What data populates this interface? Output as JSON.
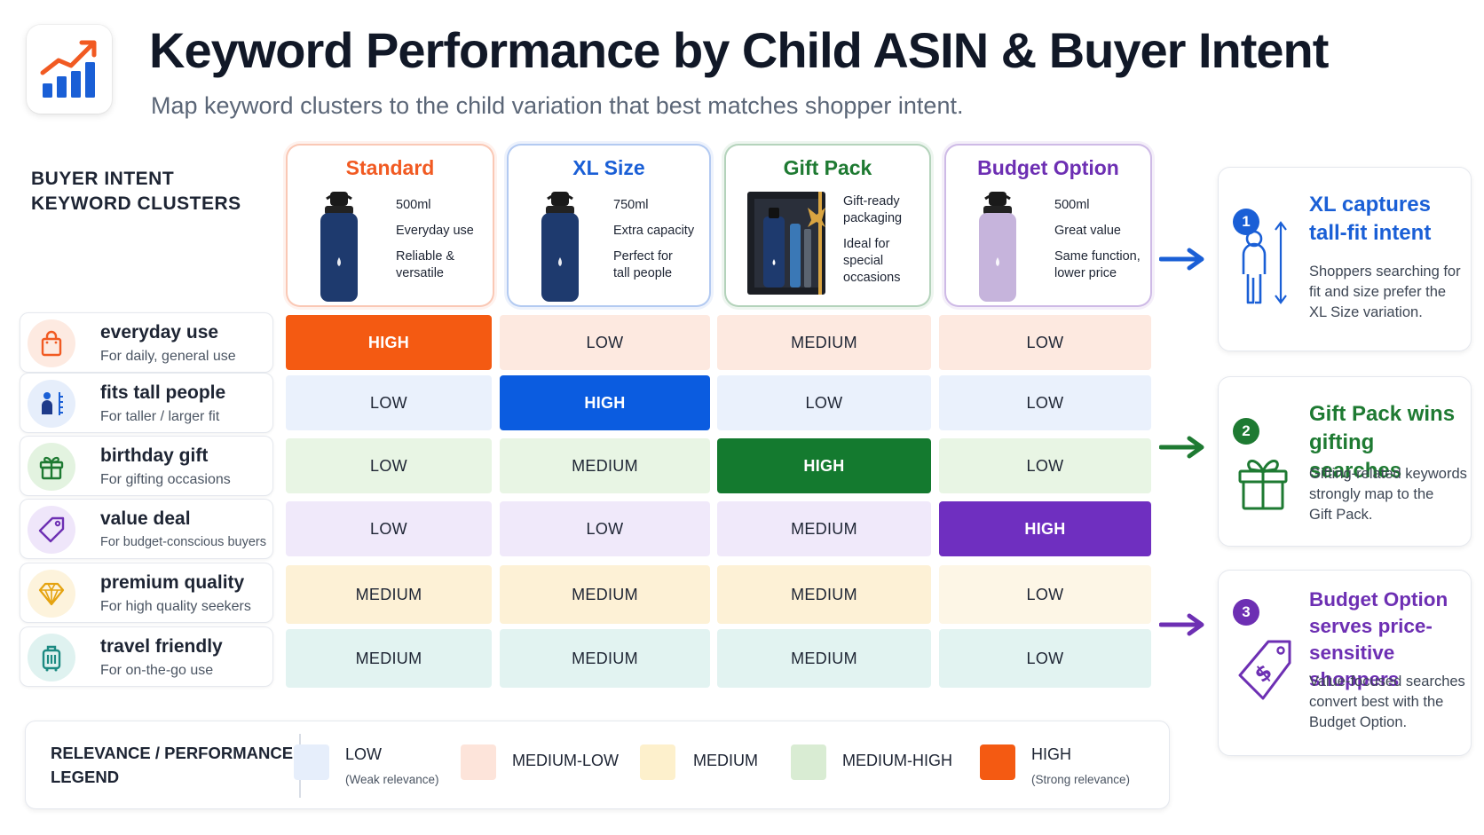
{
  "header": {
    "logo_icon": "trending-bar-chart-icon",
    "title": "Keyword Performance by Child ASIN & Buyer Intent",
    "subtitle": "Map keyword clusters to the child variation that best matches shopper intent."
  },
  "clusters_header": [
    "BUYER INTENT",
    "KEYWORD CLUSTERS"
  ],
  "products": [
    {
      "name": "Standard",
      "color": "#f15a22",
      "features": [
        "500ml",
        "Everyday use",
        "Reliable &\nversatile"
      ]
    },
    {
      "name": "XL Size",
      "color": "#1a5fd6",
      "features": [
        "750ml",
        "Extra capacity",
        "Perfect for\ntall people"
      ]
    },
    {
      "name": "Gift Pack",
      "color": "#1e7a32",
      "features": [
        "Gift-ready\npackaging",
        "Ideal for\nspecial\noccasions"
      ]
    },
    {
      "name": "Budget Option",
      "color": "#6d2fb3",
      "features": [
        "500ml",
        "Great value",
        "Same function,\nlower price"
      ]
    }
  ],
  "rows": [
    {
      "title": "everyday use",
      "subtitle": "For daily, general use",
      "icon": "shopping-bag-icon",
      "cells": [
        "HIGH",
        "LOW",
        "MEDIUM",
        "LOW"
      ]
    },
    {
      "title": "fits tall people",
      "subtitle": "For taller / larger fit",
      "icon": "person-height-icon",
      "cells": [
        "LOW",
        "HIGH",
        "LOW",
        "LOW"
      ]
    },
    {
      "title": "birthday gift",
      "subtitle": "For gifting occasions",
      "icon": "gift-icon",
      "cells": [
        "LOW",
        "MEDIUM",
        "HIGH",
        "LOW"
      ]
    },
    {
      "title": "value deal",
      "subtitle": "For budget-conscious buyers",
      "icon": "price-tag-icon",
      "cells": [
        "LOW",
        "LOW",
        "MEDIUM",
        "HIGH"
      ]
    },
    {
      "title": "premium quality",
      "subtitle": "For high quality seekers",
      "icon": "diamond-icon",
      "cells": [
        "MEDIUM",
        "MEDIUM",
        "MEDIUM",
        "LOW"
      ]
    },
    {
      "title": "travel friendly",
      "subtitle": "For on-the-go use",
      "icon": "luggage-icon",
      "cells": [
        "MEDIUM",
        "MEDIUM",
        "MEDIUM",
        "LOW"
      ]
    }
  ],
  "legend": {
    "title": [
      "RELEVANCE / PERFORMANCE",
      "LEGEND"
    ],
    "items": [
      {
        "label": "LOW",
        "sub": "(Weak relevance)",
        "color": "#e6eefb"
      },
      {
        "label": "MEDIUM-LOW",
        "color": "#fde4da"
      },
      {
        "label": "MEDIUM",
        "color": "#fdf0cc"
      },
      {
        "label": "MEDIUM-HIGH",
        "color": "#d9ecd3"
      },
      {
        "label": "HIGH",
        "sub": "(Strong relevance)",
        "color": "#f45a12"
      }
    ]
  },
  "insights": [
    {
      "number": "1",
      "color": "#1a5fd6",
      "title": "XL captures\ntall-fit intent",
      "body": "Shoppers searching for\nfit and size prefer the\nXL Size variation.",
      "icon": "person-height-icon"
    },
    {
      "number": "2",
      "color": "#1e7a32",
      "title": "Gift Pack wins\ngifting searches",
      "body": "Gifting-related keywords\nstrongly map to the\nGift Pack.",
      "icon": "gift-icon"
    },
    {
      "number": "3",
      "color": "#6d2fb3",
      "title": "Budget Option\nserves price-\nsensitive shoppers",
      "body": "Value-focused searches\nconvert best with the\nBudget Option.",
      "icon": "dollar-tag-icon"
    }
  ]
}
